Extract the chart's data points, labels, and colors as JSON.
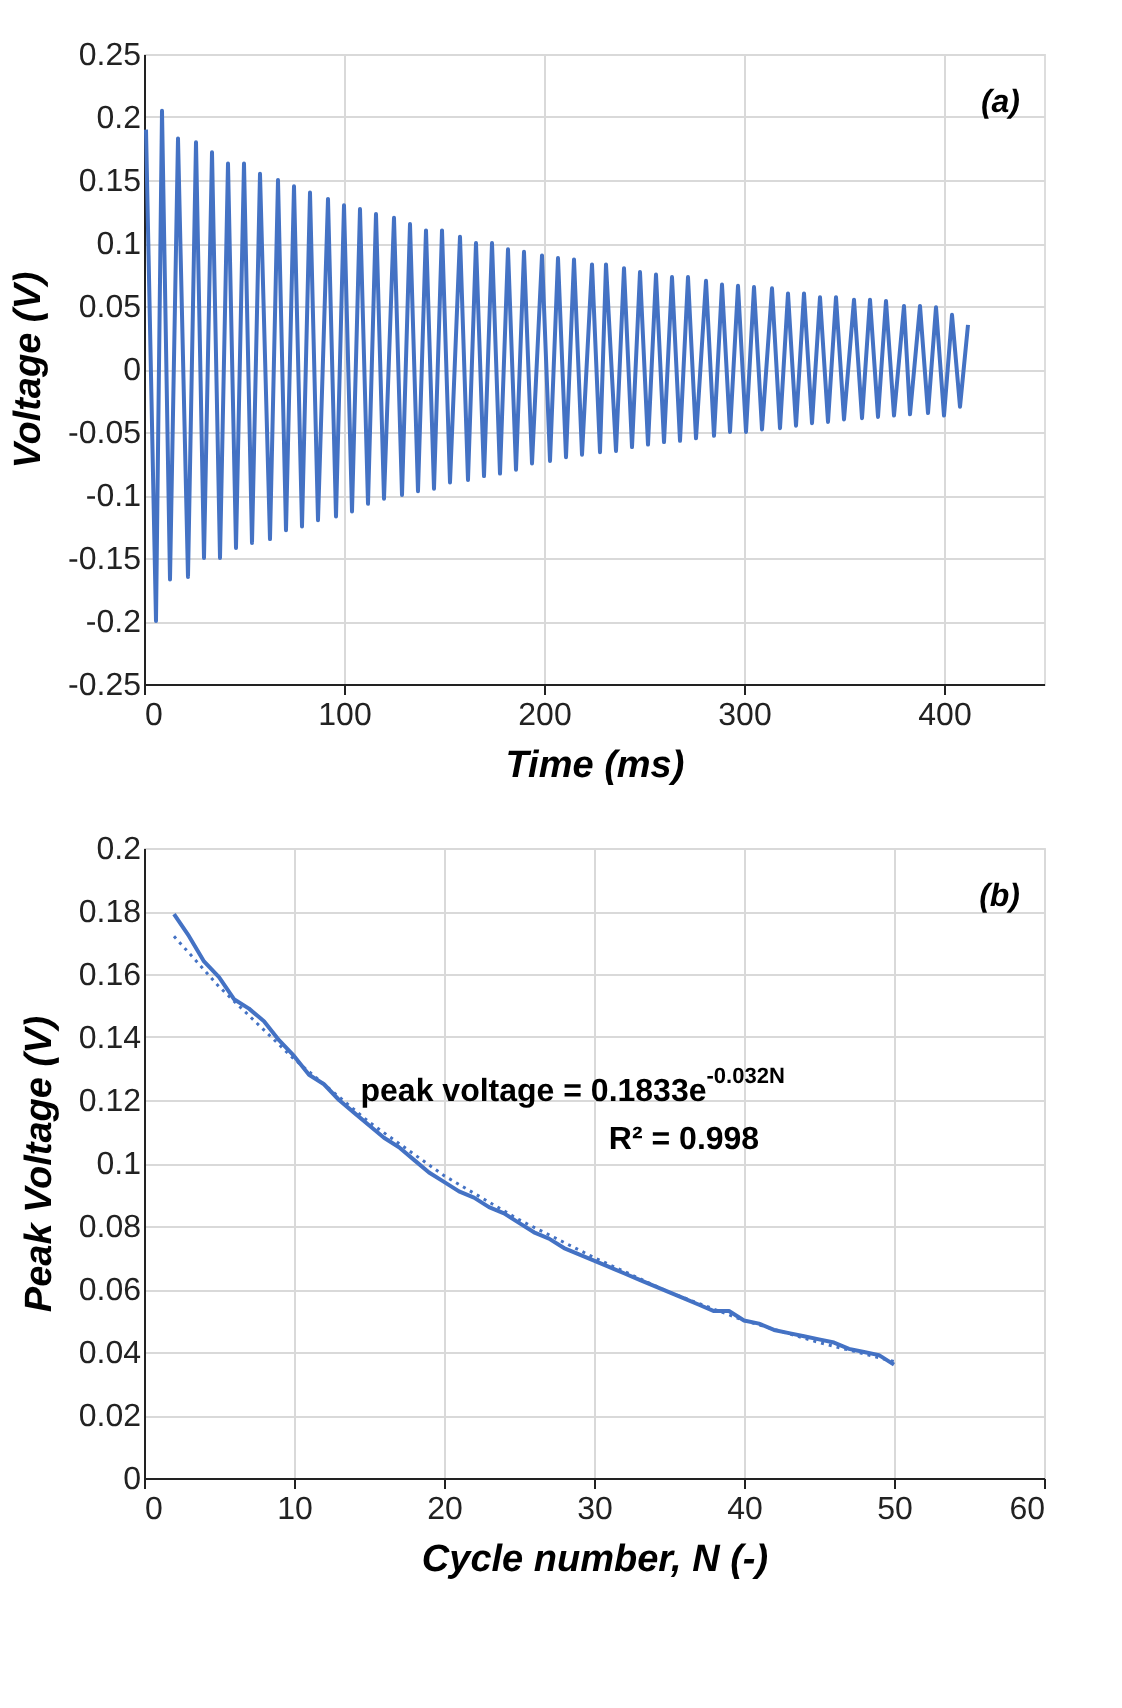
{
  "chart_data": [
    {
      "type": "line",
      "xlabel": "Time (ms)",
      "ylabel": "Voltage (V)",
      "annotations": [
        "(a)"
      ],
      "xlim": [
        0,
        450
      ],
      "xticks": [
        0,
        100,
        200,
        300,
        400
      ],
      "ylim": [
        -0.25,
        0.25
      ],
      "yticks": [
        -0.25,
        -0.2,
        -0.15,
        -0.1,
        -0.05,
        0,
        0.05,
        0.1,
        0.15,
        0.2,
        0.25
      ],
      "grid": true,
      "line_style": "solid",
      "marker": "none",
      "series": [
        {
          "color": "#4472c4",
          "x": [
            1,
            6,
            9,
            13,
            17,
            22,
            26,
            30,
            34,
            38,
            42,
            46,
            50,
            54,
            58,
            63,
            67,
            71,
            75,
            79,
            83,
            87,
            92,
            96,
            100,
            104,
            108,
            112,
            116,
            120,
            125,
            129,
            133,
            137,
            141,
            145,
            149,
            153,
            158,
            162,
            166,
            170,
            174,
            178,
            182,
            186,
            190,
            194,
            199,
            203,
            207,
            211,
            215,
            219,
            224,
            228,
            231,
            236,
            240,
            244,
            248,
            252,
            256,
            260,
            264,
            268,
            272,
            276,
            281,
            285,
            289,
            293,
            297,
            301,
            305,
            309,
            314,
            318,
            322,
            326,
            330,
            334,
            338,
            342,
            346,
            350,
            355,
            359,
            363,
            367,
            371,
            375,
            380,
            383,
            388,
            392,
            396,
            400,
            404,
            408,
            412
          ],
          "values": [
            0.19,
            -0.2,
            0.205,
            -0.167,
            0.183,
            -0.165,
            0.18,
            -0.15,
            0.172,
            -0.15,
            0.163,
            -0.142,
            0.163,
            -0.138,
            0.155,
            -0.135,
            0.15,
            -0.128,
            0.145,
            -0.125,
            0.14,
            -0.12,
            0.135,
            -0.117,
            0.13,
            -0.113,
            0.127,
            -0.107,
            0.123,
            -0.103,
            0.12,
            -0.1,
            0.115,
            -0.097,
            0.11,
            -0.095,
            0.11,
            -0.09,
            0.105,
            -0.088,
            0.1,
            -0.085,
            0.1,
            -0.083,
            0.095,
            -0.08,
            0.093,
            -0.075,
            0.09,
            -0.073,
            0.088,
            -0.07,
            0.087,
            -0.068,
            0.083,
            -0.066,
            0.083,
            -0.065,
            0.08,
            -0.062,
            0.077,
            -0.06,
            0.075,
            -0.058,
            0.073,
            -0.057,
            0.073,
            -0.055,
            0.07,
            -0.053,
            0.067,
            -0.05,
            0.066,
            -0.05,
            0.065,
            -0.048,
            0.064,
            -0.047,
            0.06,
            -0.045,
            0.06,
            -0.043,
            0.057,
            -0.042,
            0.057,
            -0.04,
            0.055,
            -0.039,
            0.055,
            -0.038,
            0.054,
            -0.037,
            0.05,
            -0.036,
            0.05,
            -0.035,
            0.049,
            -0.037,
            0.043,
            -0.03,
            0.035
          ]
        }
      ]
    },
    {
      "type": "line",
      "xlabel": "Cycle number, N (-)",
      "ylabel": "Peak Voltage (V)",
      "annotations": [
        "(b)",
        "peak voltage = 0.1833e$^{-0.032N}$",
        "R² = 0.998"
      ],
      "xlim": [
        0,
        60
      ],
      "xticks": [
        0,
        10,
        20,
        30,
        40,
        50,
        60
      ],
      "ylim": [
        0,
        0.2
      ],
      "yticks": [
        0,
        0.02,
        0.04,
        0.06,
        0.08,
        0.1,
        0.12,
        0.14,
        0.16,
        0.18,
        0.2
      ],
      "grid": true,
      "marker": "none",
      "series": [
        {
          "color": "#4472c4",
          "line_style": "solid",
          "x": [
            2,
            3,
            4,
            5,
            6,
            7,
            8,
            9,
            10,
            11,
            12,
            13,
            14,
            15,
            16,
            17,
            18,
            19,
            20,
            21,
            22,
            23,
            24,
            25,
            26,
            27,
            28,
            29,
            30,
            31,
            32,
            33,
            34,
            35,
            36,
            37,
            38,
            39,
            40,
            41,
            42,
            43,
            44,
            45,
            46,
            47,
            48,
            49,
            50
          ],
          "values": [
            0.179,
            0.172,
            0.164,
            0.159,
            0.152,
            0.149,
            0.145,
            0.139,
            0.134,
            0.128,
            0.125,
            0.12,
            0.116,
            0.112,
            0.108,
            0.105,
            0.101,
            0.097,
            0.094,
            0.091,
            0.089,
            0.086,
            0.084,
            0.081,
            0.078,
            0.076,
            0.073,
            0.071,
            0.069,
            0.067,
            0.065,
            0.063,
            0.061,
            0.059,
            0.057,
            0.055,
            0.053,
            0.053,
            0.05,
            0.049,
            0.047,
            0.046,
            0.045,
            0.044,
            0.043,
            0.041,
            0.04,
            0.039,
            0.036
          ]
        },
        {
          "type": "line",
          "color": "#4472c4",
          "line_style": "dotted",
          "x": [
            2,
            5,
            10,
            15,
            20,
            25,
            30,
            35,
            40,
            45,
            50
          ],
          "values": [
            0.172,
            0.156,
            0.133,
            0.113,
            0.096,
            0.082,
            0.07,
            0.059,
            0.05,
            0.043,
            0.037
          ]
        }
      ]
    }
  ]
}
